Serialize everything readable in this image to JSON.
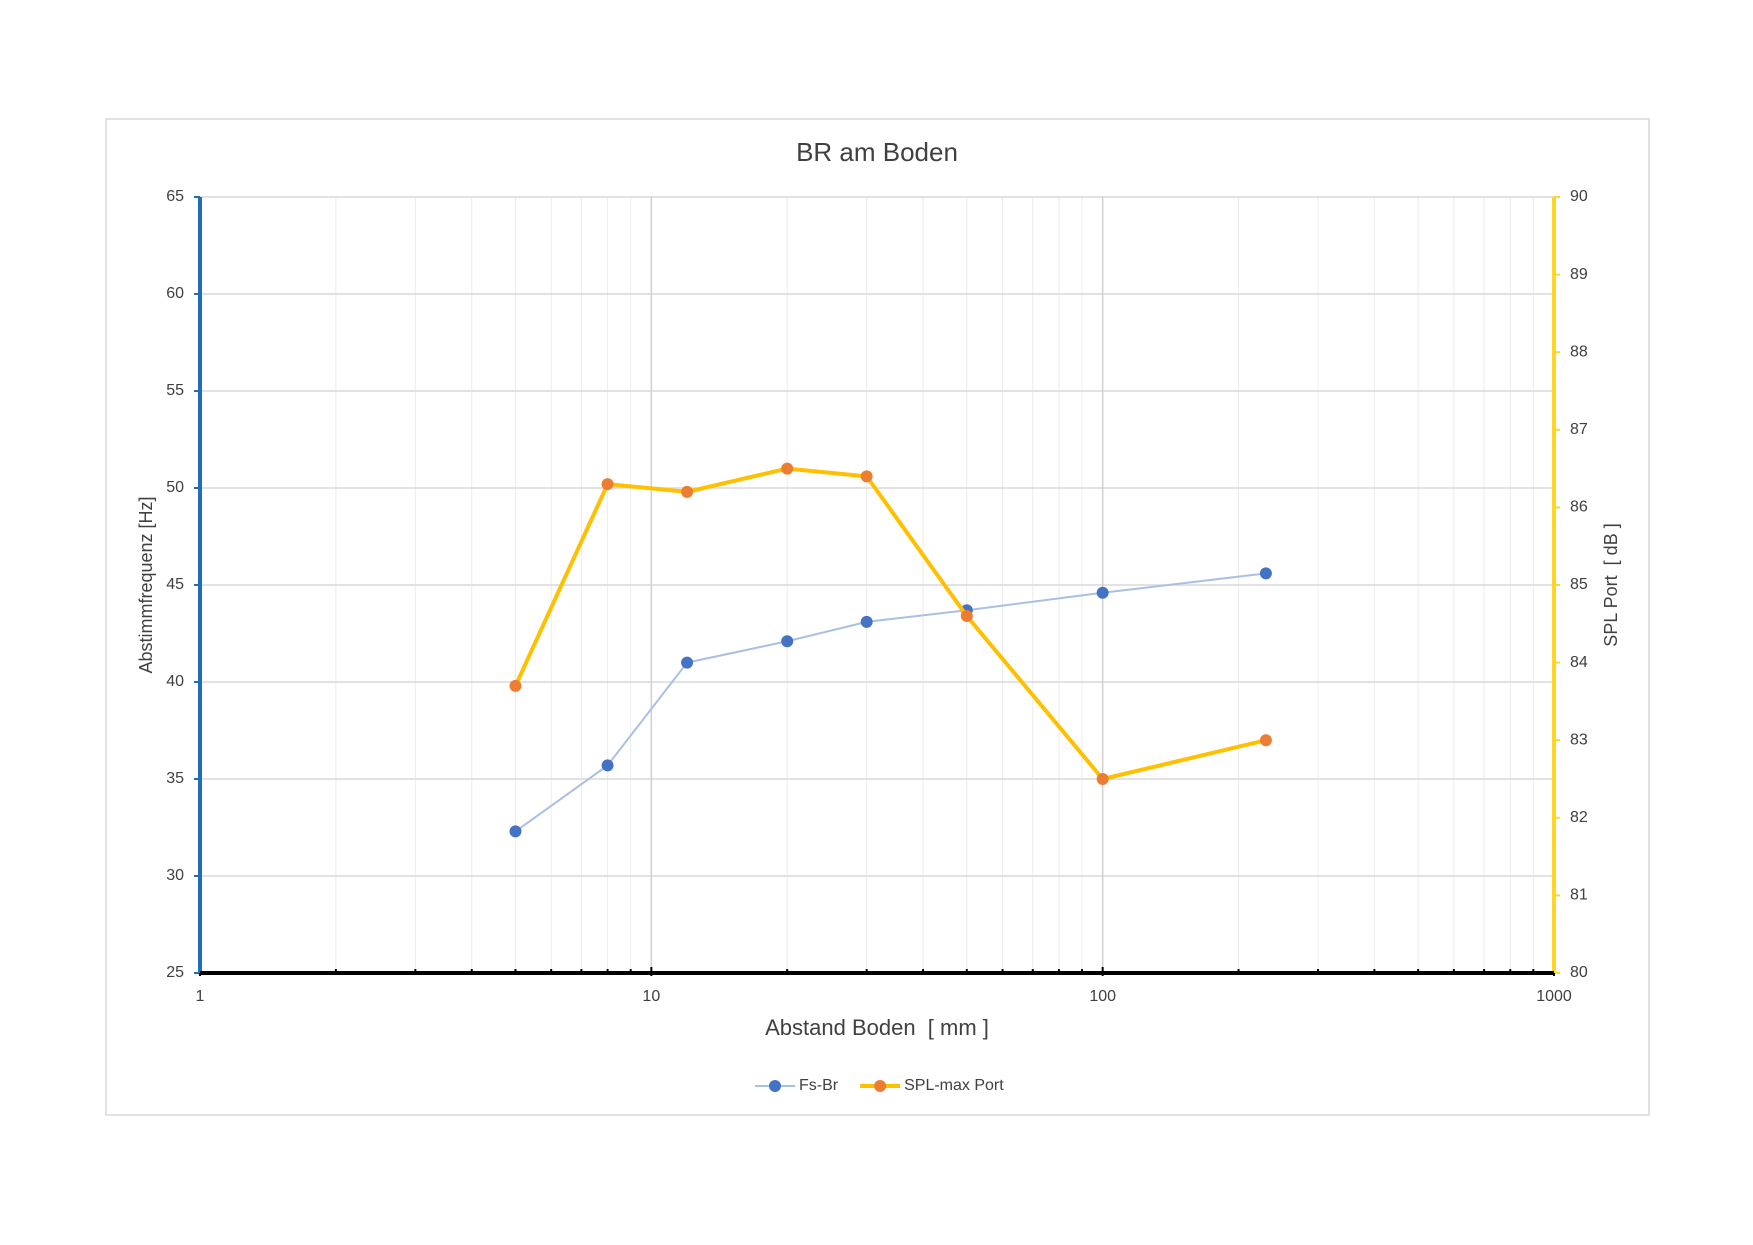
{
  "chart_data": {
    "type": "line",
    "title": "BR am Boden",
    "x_label": "Abstand Boden  [ mm ]",
    "y_label": "Abstimmfrequenz [Hz]",
    "y2_label": "SPL Port  [ dB ]",
    "x_scale": "log",
    "xlim": [
      1,
      1000
    ],
    "xticks": [
      1,
      10,
      100,
      1000
    ],
    "minor_grid": true,
    "ylim": [
      25,
      65
    ],
    "yticks": [
      25,
      30,
      35,
      40,
      45,
      50,
      55,
      60,
      65
    ],
    "y2lim": [
      80,
      90
    ],
    "y2ticks": [
      80,
      81,
      82,
      83,
      84,
      85,
      86,
      87,
      88,
      89,
      90
    ],
    "y_axis_color": "#1f6fb4",
    "y2_axis_color": "#ffd52a",
    "grid": true,
    "legend": "bottom",
    "x": [
      5,
      8,
      12,
      20,
      30,
      50,
      100,
      230
    ],
    "series": [
      {
        "name": "Fs-Br",
        "color": "#a9c0e3",
        "marker_color": "#4472c4",
        "line_width": 2,
        "values": [
          32.3,
          35.7,
          41.0,
          42.1,
          43.1,
          43.7,
          44.6,
          45.6
        ]
      },
      {
        "name": "SPL-max Port",
        "color": "#ffc000",
        "marker_color": "#ed7d31",
        "line_width": 4,
        "axis": "y2",
        "values": [
          83.7,
          86.3,
          86.2,
          86.5,
          86.4,
          84.6,
          82.5,
          83.0
        ]
      }
    ]
  }
}
